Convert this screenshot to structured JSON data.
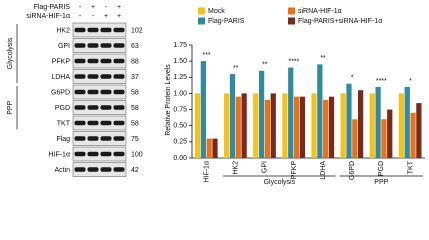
{
  "blot": {
    "treatments": [
      {
        "label": "Flag-PARIS",
        "signs": [
          "-",
          "+",
          "-",
          "+"
        ]
      },
      {
        "label": "siRNA-HIF-1α",
        "signs": [
          "-",
          "-",
          "+",
          "+"
        ]
      }
    ],
    "proteins": [
      {
        "name": "HK2",
        "mw": 102
      },
      {
        "name": "GPI",
        "mw": 63
      },
      {
        "name": "PFKP",
        "mw": 88
      },
      {
        "name": "LDHA",
        "mw": 37
      },
      {
        "name": "G6PD",
        "mw": 58
      },
      {
        "name": "PGD",
        "mw": 58
      },
      {
        "name": "TKT",
        "mw": 58
      },
      {
        "name": "Flag",
        "mw": 75
      },
      {
        "name": "HIF-1α",
        "mw": 100
      },
      {
        "name": "Actin",
        "mw": 42
      }
    ],
    "groups": [
      {
        "label": "Glycolysis",
        "first": "HK2",
        "last": "LDHA"
      },
      {
        "label": "PPP",
        "first": "G6PD",
        "last": "TKT"
      }
    ]
  },
  "chart_data": {
    "type": "bar",
    "y_label": "Relative Protein Levels",
    "categories": [
      "HIF-1α",
      "HK2",
      "GPI",
      "PFKP",
      "LDHA",
      "G6PD",
      "PGD",
      "TKT"
    ],
    "series": [
      {
        "name": "Mock",
        "color": "#f4c21a",
        "values": [
          1.0,
          1.0,
          1.0,
          1.0,
          1.0,
          1.0,
          1.0,
          1.0
        ]
      },
      {
        "name": "Flag-PARIS",
        "color": "#2f8ba3",
        "values": [
          1.5,
          1.3,
          1.35,
          1.4,
          1.45,
          1.15,
          1.1,
          1.1
        ]
      },
      {
        "name": "siRNA-HIF-1α",
        "color": "#e8721c",
        "values": [
          0.3,
          0.95,
          0.9,
          0.95,
          0.9,
          0.6,
          0.6,
          0.7
        ]
      },
      {
        "name": "Flag-PARIS+siRNA-HIF-1α",
        "color": "#7b2a18",
        "values": [
          0.3,
          1.0,
          1.0,
          0.95,
          0.95,
          1.05,
          0.75,
          0.85
        ]
      }
    ],
    "significance": [
      "***",
      "**",
      "**",
      "****",
      "**",
      "*",
      "****",
      "*"
    ],
    "groups": [
      {
        "label": "Glycolysis",
        "first": "HK2",
        "last": "LDHA"
      },
      {
        "label": "PPP",
        "first": "G6PD",
        "last": "TKT"
      }
    ],
    "ylim": [
      0,
      1.75
    ],
    "yticks": [
      {
        "value": 0,
        "label": "0.00"
      },
      {
        "value": 0.25,
        "label": "0.25"
      },
      {
        "value": 0.5,
        "label": "0.50"
      },
      {
        "value": 0.75,
        "label": "0.75"
      },
      {
        "value": 1.0,
        "label": "1.00"
      },
      {
        "value": 1.25,
        "label": "1.25"
      },
      {
        "value": 1.5,
        "label": "1.50"
      },
      {
        "value": 1.75,
        "label": "1.75"
      }
    ]
  }
}
